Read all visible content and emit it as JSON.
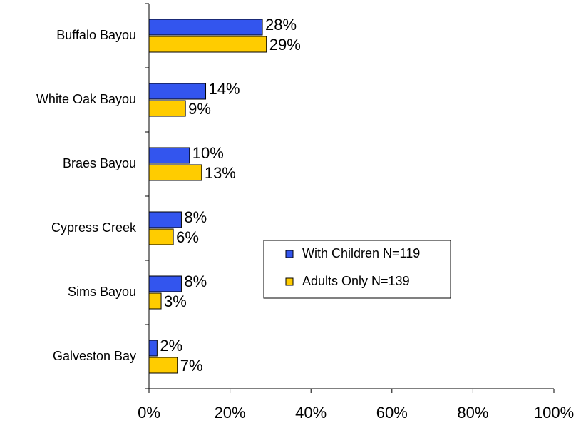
{
  "chart_data": {
    "type": "bar",
    "orientation": "horizontal",
    "categories": [
      "Buffalo Bayou",
      "White Oak Bayou",
      "Braes Bayou",
      "Cypress Creek",
      "Sims Bayou",
      "Galveston Bay"
    ],
    "series": [
      {
        "name": "With Children N=119",
        "color": "#3355ee",
        "values": [
          28,
          14,
          10,
          8,
          8,
          2
        ],
        "value_labels": [
          "28%",
          "14%",
          "10%",
          "8%",
          "8%",
          "2%"
        ]
      },
      {
        "name": "Adults Only N=139",
        "color": "#ffcc00",
        "values": [
          29,
          9,
          13,
          6,
          3,
          7
        ],
        "value_labels": [
          "29%",
          "9%",
          "13%",
          "6%",
          "3%",
          "7%"
        ]
      }
    ],
    "xlim": [
      0,
      100
    ],
    "xticks": [
      {
        "value": 0,
        "label": "0%"
      },
      {
        "value": 20,
        "label": "20%"
      },
      {
        "value": 40,
        "label": "40%"
      },
      {
        "value": 60,
        "label": "60%"
      },
      {
        "value": 80,
        "label": "80%"
      },
      {
        "value": 100,
        "label": "100%"
      }
    ],
    "legend": "center-right"
  }
}
